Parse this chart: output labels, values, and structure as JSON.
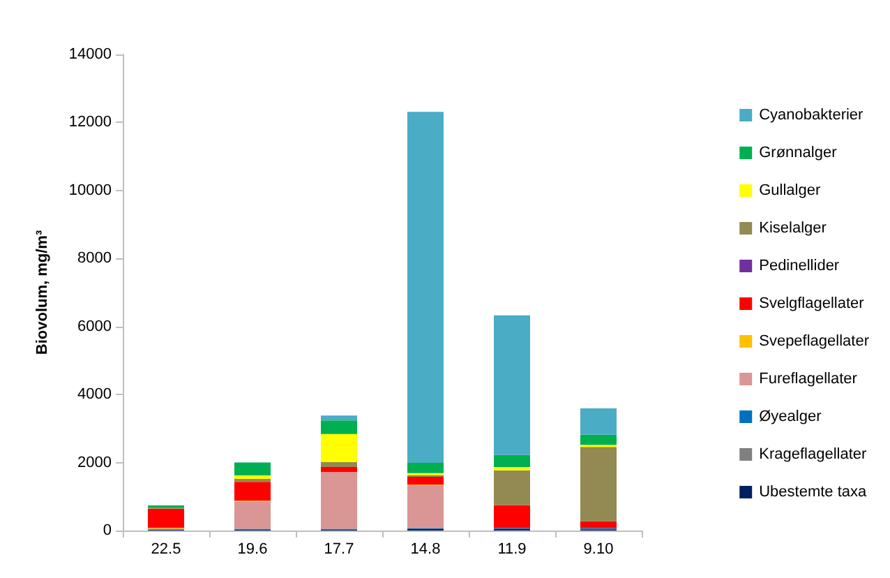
{
  "chart_data": {
    "type": "bar",
    "stacked": true,
    "ylabel": "Biovolum, mg/m³",
    "categories": [
      "22.5",
      "19.6",
      "17.7",
      "14.8",
      "11.9",
      "9.10"
    ],
    "ylim": [
      0,
      14000
    ],
    "yticks": [
      0,
      2000,
      4000,
      6000,
      8000,
      10000,
      12000,
      14000
    ],
    "grid": false,
    "legend": "right",
    "series": [
      {
        "name": "Ubestemte taxa",
        "color": "#002060",
        "values": [
          20,
          30,
          30,
          40,
          40,
          30
        ]
      },
      {
        "name": "Krageflagellater",
        "color": "#808080",
        "values": [
          0,
          0,
          0,
          0,
          0,
          0
        ]
      },
      {
        "name": "Øyealger",
        "color": "#0070c0",
        "values": [
          10,
          20,
          20,
          20,
          30,
          40
        ]
      },
      {
        "name": "Fureflagellater",
        "color": "#d99694",
        "values": [
          30,
          800,
          1670,
          1270,
          0,
          0
        ]
      },
      {
        "name": "Svepeflagellater",
        "color": "#ffc000",
        "values": [
          20,
          30,
          0,
          20,
          0,
          0
        ]
      },
      {
        "name": "Svelgflagellater",
        "color": "#ff0000",
        "values": [
          560,
          550,
          150,
          230,
          680,
          200
        ]
      },
      {
        "name": "Pedinellider",
        "color": "#7030a0",
        "values": [
          0,
          0,
          0,
          0,
          0,
          0
        ]
      },
      {
        "name": "Kiselalger",
        "color": "#938953",
        "values": [
          20,
          90,
          140,
          50,
          1020,
          2190
        ]
      },
      {
        "name": "Gullalger",
        "color": "#ffff00",
        "values": [
          0,
          100,
          830,
          60,
          100,
          60
        ]
      },
      {
        "name": "Grønnalger",
        "color": "#00b050",
        "values": [
          80,
          380,
          400,
          300,
          350,
          300
        ]
      },
      {
        "name": "Cyanobakterier",
        "color": "#4bacc6",
        "values": [
          0,
          0,
          140,
          10320,
          4110,
          770
        ]
      }
    ]
  }
}
